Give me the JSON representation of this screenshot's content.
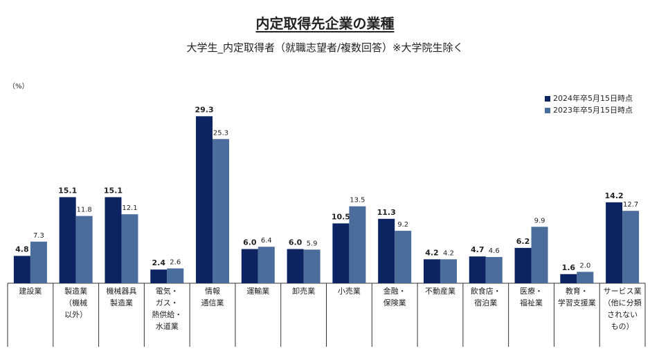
{
  "title": "内定取得先企業の業種",
  "subtitle": "大学生_内定取得者（就職志望者/複数回答）※大学院生除く",
  "unit_label": "（%）",
  "colors": {
    "series_2024": "#0c2461",
    "series_2023": "#4a6d9c",
    "axis": "#333333"
  },
  "chart_data": {
    "type": "bar",
    "ylim": [
      0,
      31
    ],
    "grid": false,
    "legend_position": "top-right",
    "categories": [
      [
        "建設業"
      ],
      [
        "製造業",
        "（機械",
        "以外）"
      ],
      [
        "機械器具",
        "製造業"
      ],
      [
        "電気・",
        "ガス・",
        "熱供給・",
        "水道業"
      ],
      [
        "情報",
        "通信業"
      ],
      [
        "運輸業"
      ],
      [
        "卸売業"
      ],
      [
        "小売業"
      ],
      [
        "金融・",
        "保険業"
      ],
      [
        "不動産業"
      ],
      [
        "飲食店・",
        "宿泊業"
      ],
      [
        "医療・",
        "福祉業"
      ],
      [
        "教育・",
        "学習支援業"
      ],
      [
        "サービス業",
        "（他に分類",
        "されない",
        "もの）"
      ]
    ],
    "series": [
      {
        "name": "2024年卒5月15日時点",
        "values": [
          4.8,
          15.1,
          15.1,
          2.4,
          29.3,
          6.0,
          6.0,
          10.5,
          11.3,
          4.2,
          4.7,
          6.2,
          1.6,
          14.2
        ]
      },
      {
        "name": "2023年卒5月15日時点",
        "values": [
          7.3,
          11.8,
          12.1,
          2.6,
          25.3,
          6.4,
          5.9,
          13.5,
          9.2,
          4.2,
          4.6,
          9.9,
          2.0,
          12.7
        ]
      }
    ]
  }
}
